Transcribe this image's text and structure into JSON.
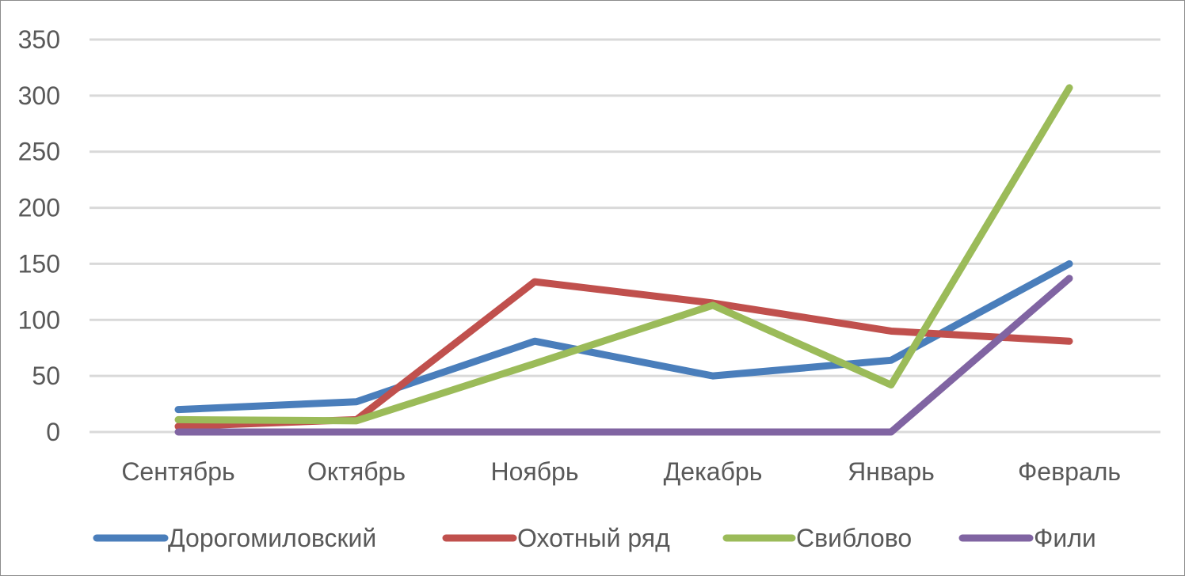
{
  "chart_data": {
    "type": "line",
    "categories": [
      "Сентябрь",
      "Октябрь",
      "Ноябрь",
      "Декабрь",
      "Январь",
      "Февраль"
    ],
    "series": [
      {
        "name": "Дорогомиловский",
        "color": "#4a7ebb",
        "values": [
          20,
          27,
          81,
          50,
          64,
          150
        ]
      },
      {
        "name": "Охотный ряд",
        "color": "#c0504d",
        "values": [
          5,
          11,
          134,
          115,
          90,
          81
        ]
      },
      {
        "name": "Свиблово",
        "color": "#9bbb59",
        "values": [
          11,
          10,
          61,
          113,
          42,
          307
        ]
      },
      {
        "name": "Фили",
        "color": "#8064a2",
        "values": [
          0,
          0,
          0,
          0,
          0,
          137
        ]
      }
    ],
    "ylim": [
      0,
      350
    ],
    "yticks": [
      "0",
      "50",
      "100",
      "150",
      "200",
      "250",
      "300",
      "350"
    ],
    "grid": true,
    "legend_position": "bottom",
    "title": "",
    "xlabel": "",
    "ylabel": ""
  }
}
